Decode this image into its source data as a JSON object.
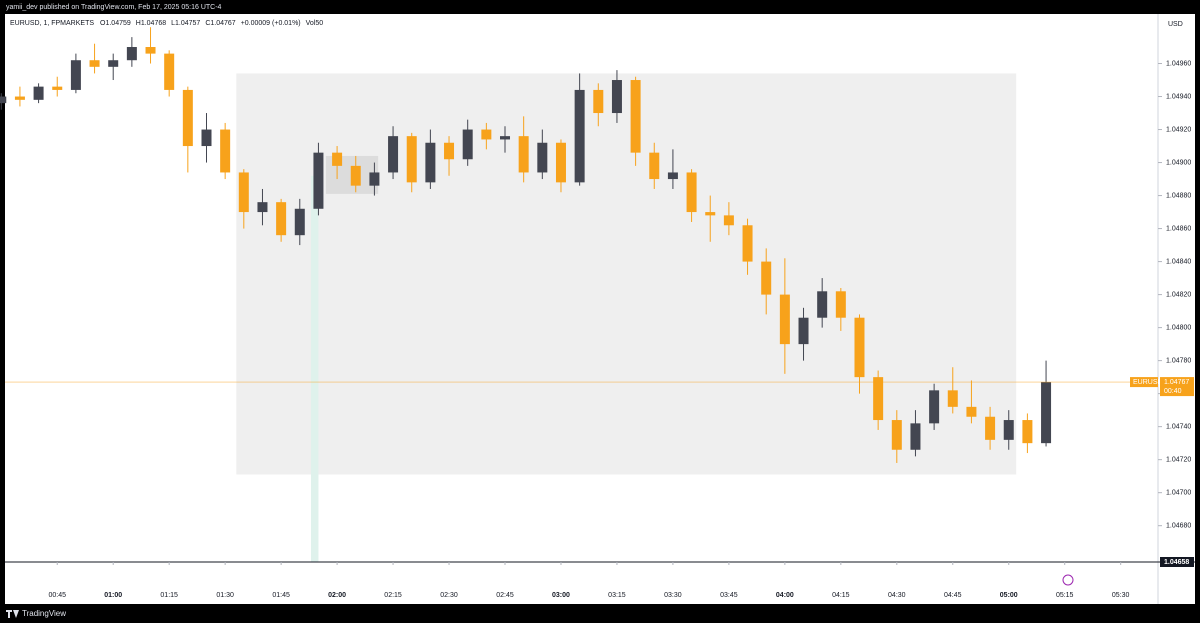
{
  "header": {
    "published": "yamii_dev published on TradingView.com, Feb 17, 2025 05:16 UTC-4",
    "brand": "TradingView"
  },
  "chart_data": {
    "type": "candlestick",
    "legend": {
      "symbol": "EURUSD, 1, FPMARKETS",
      "items": [
        "O1.04759",
        "H1.04768",
        "L1.04757",
        "C1.04767",
        "+0.00009 (+0.01%)",
        "Vol50"
      ]
    },
    "currency": "USD",
    "up_color": "#434651",
    "down_color": "#f7a21b",
    "grid": false,
    "xlim": [
      "00:31",
      "05:40"
    ],
    "xticks": [
      "00:45",
      "01:00",
      "01:15",
      "01:30",
      "01:45",
      "02:00",
      "02:15",
      "02:30",
      "02:45",
      "03:00",
      "03:15",
      "03:30",
      "03:45",
      "04:00",
      "04:15",
      "04:30",
      "04:45",
      "05:00",
      "05:15",
      "05:30"
    ],
    "ylim": [
      1.04658,
      1.0499
    ],
    "yticks": [
      {
        "value": 1.0496,
        "label": "1.04960"
      },
      {
        "value": 1.0494,
        "label": "1.04940"
      },
      {
        "value": 1.0492,
        "label": "1.04920"
      },
      {
        "value": 1.049,
        "label": "1.04900"
      },
      {
        "value": 1.0488,
        "label": "1.04880"
      },
      {
        "value": 1.0486,
        "label": "1.04860"
      },
      {
        "value": 1.0484,
        "label": "1.04840"
      },
      {
        "value": 1.0482,
        "label": "1.04820"
      },
      {
        "value": 1.048,
        "label": "1.04800"
      },
      {
        "value": 1.0478,
        "label": "1.04780"
      },
      {
        "value": 1.0476,
        "label": "1.04760"
      },
      {
        "value": 1.0474,
        "label": "1.04740"
      },
      {
        "value": 1.0472,
        "label": "1.04720"
      },
      {
        "value": 1.047,
        "label": "1.04700"
      },
      {
        "value": 1.0468,
        "label": "1.04680"
      }
    ],
    "last_price": {
      "value": 1.04767,
      "label": "1.04767",
      "symbol": "EURUSD",
      "countdown": "00:40",
      "color": "#f7a21b"
    },
    "marker_price": {
      "value": 1.04658,
      "label": "1.04658"
    },
    "zones": [
      {
        "start": "01:33",
        "end": "05:02",
        "top": 1.04954,
        "bottom": 1.04711,
        "color": "#efefef"
      },
      {
        "start": "01:57",
        "end": "02:11",
        "top": 1.04904,
        "bottom": 1.04881,
        "color": "#dcdcdc"
      },
      {
        "start": "01:53",
        "end": "01:55",
        "top": 1.04892,
        "bottom": 1.04658,
        "color": "#dff2ec"
      }
    ],
    "candles": {
      "x": [
        "00:30",
        "00:35",
        "00:40",
        "00:45",
        "00:50",
        "00:55",
        "01:00",
        "01:05",
        "01:10",
        "01:15",
        "01:20",
        "01:25",
        "01:30",
        "01:35",
        "01:40",
        "01:45",
        "01:50",
        "01:55",
        "02:00",
        "02:05",
        "02:10",
        "02:15",
        "02:20",
        "02:25",
        "02:30",
        "02:35",
        "02:40",
        "02:45",
        "02:50",
        "02:55",
        "03:00",
        "03:05",
        "03:10",
        "03:15",
        "03:20",
        "03:25",
        "03:30",
        "03:35",
        "03:40",
        "03:45",
        "03:50",
        "03:55",
        "04:00",
        "04:05",
        "04:10",
        "04:15",
        "04:20",
        "04:25",
        "04:30",
        "04:35",
        "04:40",
        "04:45",
        "04:50",
        "04:55",
        "05:00",
        "05:05",
        "05:10"
      ],
      "open": [
        1.04936,
        1.0494,
        1.04938,
        1.04946,
        1.04944,
        1.04962,
        1.04958,
        1.04962,
        1.0497,
        1.04966,
        1.04944,
        1.0491,
        1.0492,
        1.04894,
        1.0487,
        1.04876,
        1.04856,
        1.04872,
        1.04906,
        1.04898,
        1.04886,
        1.04894,
        1.04916,
        1.04888,
        1.04912,
        1.04902,
        1.0492,
        1.04914,
        1.04916,
        1.04894,
        1.04912,
        1.04888,
        1.04944,
        1.0493,
        1.0495,
        1.04906,
        1.0489,
        1.04894,
        1.0487,
        1.04868,
        1.04862,
        1.0484,
        1.0482,
        1.0479,
        1.04806,
        1.04822,
        1.04806,
        1.0477,
        1.04744,
        1.04726,
        1.04742,
        1.04762,
        1.04752,
        1.04746,
        1.04732,
        1.04744,
        1.0473
      ],
      "high": [
        1.04942,
        1.04946,
        1.04948,
        1.04952,
        1.04966,
        1.04972,
        1.04966,
        1.04976,
        1.04982,
        1.04968,
        1.04946,
        1.0493,
        1.04924,
        1.04896,
        1.04884,
        1.04878,
        1.04878,
        1.04912,
        1.0491,
        1.04904,
        1.049,
        1.04922,
        1.04918,
        1.0492,
        1.04916,
        1.04926,
        1.04924,
        1.04922,
        1.04928,
        1.0492,
        1.04914,
        1.04954,
        1.04948,
        1.04956,
        1.04952,
        1.04912,
        1.04908,
        1.04896,
        1.0488,
        1.04876,
        1.04866,
        1.04848,
        1.04842,
        1.04812,
        1.0483,
        1.04824,
        1.04808,
        1.04774,
        1.0475,
        1.0475,
        1.04766,
        1.04776,
        1.04768,
        1.04752,
        1.0475,
        1.04748,
        1.0478
      ],
      "low": [
        1.04932,
        1.04934,
        1.04936,
        1.0494,
        1.04942,
        1.04954,
        1.0495,
        1.04958,
        1.0496,
        1.0494,
        1.04894,
        1.049,
        1.0489,
        1.0486,
        1.04862,
        1.04852,
        1.0485,
        1.04868,
        1.0489,
        1.04882,
        1.0488,
        1.0489,
        1.04882,
        1.04884,
        1.04892,
        1.04898,
        1.04908,
        1.04906,
        1.04888,
        1.0489,
        1.04882,
        1.04886,
        1.04922,
        1.04924,
        1.04898,
        1.04884,
        1.04884,
        1.04864,
        1.04852,
        1.04856,
        1.04832,
        1.04808,
        1.04772,
        1.0478,
        1.048,
        1.04798,
        1.0476,
        1.04738,
        1.04718,
        1.04722,
        1.04738,
        1.04748,
        1.04742,
        1.04726,
        1.04726,
        1.04724,
        1.04728
      ],
      "close": [
        1.0494,
        1.04938,
        1.04946,
        1.04944,
        1.04962,
        1.04958,
        1.04962,
        1.0497,
        1.04966,
        1.04944,
        1.0491,
        1.0492,
        1.04894,
        1.0487,
        1.04876,
        1.04856,
        1.04872,
        1.04906,
        1.04898,
        1.04886,
        1.04894,
        1.04916,
        1.04888,
        1.04912,
        1.04902,
        1.0492,
        1.04914,
        1.04916,
        1.04894,
        1.04912,
        1.04888,
        1.04944,
        1.0493,
        1.0495,
        1.04906,
        1.0489,
        1.04894,
        1.0487,
        1.04868,
        1.04862,
        1.0484,
        1.0482,
        1.0479,
        1.04806,
        1.04822,
        1.04806,
        1.0477,
        1.04744,
        1.04726,
        1.04742,
        1.04762,
        1.04752,
        1.04746,
        1.04732,
        1.04744,
        1.0473,
        1.04767
      ]
    }
  }
}
